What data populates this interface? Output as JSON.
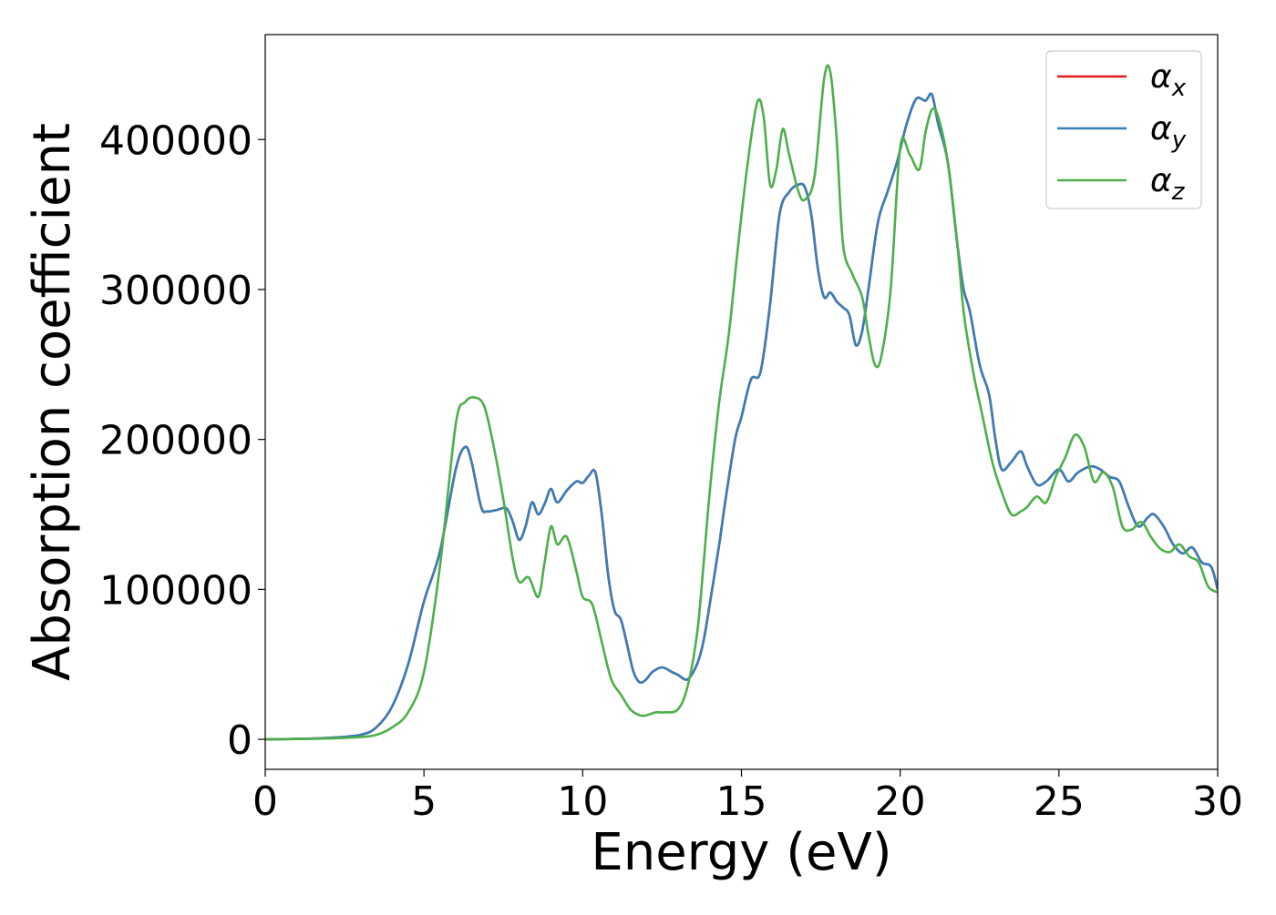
{
  "chart_data": {
    "type": "line",
    "title": "",
    "xlabel": "Energy (eV)",
    "ylabel": "Absorption coefficient",
    "xlim": [
      0,
      30
    ],
    "ylim": [
      -20000,
      470000
    ],
    "xticks": [
      0,
      5,
      10,
      15,
      20,
      25,
      30
    ],
    "yticks": [
      0,
      100000,
      200000,
      300000,
      400000
    ],
    "grid": false,
    "legend_position": "top-right",
    "series": [
      {
        "name": "α_x",
        "label_base": "α",
        "label_sub": "x",
        "color": "#e41a1c",
        "x": [
          0,
          1,
          2,
          3,
          3.5,
          4,
          4.5,
          5,
          5.5,
          6,
          6.3,
          6.5,
          6.8,
          7,
          7.3,
          7.6,
          7.8,
          8,
          8.2,
          8.4,
          8.6,
          8.8,
          9,
          9.2,
          9.5,
          9.8,
          10,
          10.2,
          10.4,
          10.6,
          10.8,
          11,
          11.2,
          11.4,
          11.6,
          11.8,
          12,
          12.2,
          12.5,
          12.8,
          13,
          13.3,
          13.6,
          13.8,
          14,
          14.3,
          14.5,
          14.8,
          15,
          15.3,
          15.6,
          15.9,
          16.2,
          16.5,
          16.8,
          17,
          17.2,
          17.4,
          17.6,
          17.8,
          18,
          18.2,
          18.4,
          18.6,
          18.8,
          19,
          19.3,
          19.6,
          19.9,
          20.2,
          20.5,
          20.8,
          21,
          21.2,
          21.5,
          21.8,
          22,
          22.2,
          22.5,
          22.8,
          23,
          23.2,
          23.5,
          23.8,
          24,
          24.3,
          24.6,
          25,
          25.3,
          25.6,
          26,
          26.3,
          26.6,
          26.9,
          27.2,
          27.5,
          27.8,
          28,
          28.3,
          28.6,
          28.9,
          29.2,
          29.5,
          29.8,
          30
        ],
        "y": [
          0,
          300,
          1000,
          3000,
          8000,
          22000,
          50000,
          92000,
          125000,
          180000,
          195000,
          185000,
          155000,
          152000,
          153000,
          154000,
          145000,
          133000,
          142000,
          158000,
          150000,
          157000,
          167000,
          158000,
          166000,
          172000,
          171000,
          176000,
          178000,
          150000,
          110000,
          86000,
          80000,
          63000,
          45000,
          38000,
          40000,
          45000,
          48000,
          45000,
          43000,
          40000,
          50000,
          65000,
          90000,
          130000,
          160000,
          200000,
          215000,
          240000,
          245000,
          290000,
          350000,
          365000,
          370000,
          368000,
          350000,
          315000,
          295000,
          298000,
          292000,
          288000,
          283000,
          263000,
          272000,
          300000,
          345000,
          365000,
          385000,
          410000,
          427000,
          426000,
          430000,
          410000,
          385000,
          330000,
          300000,
          285000,
          250000,
          230000,
          200000,
          180000,
          185000,
          192000,
          182000,
          170000,
          172000,
          180000,
          172000,
          178000,
          182000,
          180000,
          175000,
          172000,
          155000,
          142000,
          148000,
          150000,
          142000,
          130000,
          124000,
          128000,
          118000,
          115000,
          100000
        ]
      },
      {
        "name": "α_y",
        "label_base": "α",
        "label_sub": "y",
        "color": "#377eb8",
        "x": [
          0,
          1,
          2,
          3,
          3.5,
          4,
          4.5,
          5,
          5.5,
          6,
          6.3,
          6.5,
          6.8,
          7,
          7.3,
          7.6,
          7.8,
          8,
          8.2,
          8.4,
          8.6,
          8.8,
          9,
          9.2,
          9.5,
          9.8,
          10,
          10.2,
          10.4,
          10.6,
          10.8,
          11,
          11.2,
          11.4,
          11.6,
          11.8,
          12,
          12.2,
          12.5,
          12.8,
          13,
          13.3,
          13.6,
          13.8,
          14,
          14.3,
          14.5,
          14.8,
          15,
          15.3,
          15.6,
          15.9,
          16.2,
          16.5,
          16.8,
          17,
          17.2,
          17.4,
          17.6,
          17.8,
          18,
          18.2,
          18.4,
          18.6,
          18.8,
          19,
          19.3,
          19.6,
          19.9,
          20.2,
          20.5,
          20.8,
          21,
          21.2,
          21.5,
          21.8,
          22,
          22.2,
          22.5,
          22.8,
          23,
          23.2,
          23.5,
          23.8,
          24,
          24.3,
          24.6,
          25,
          25.3,
          25.6,
          26,
          26.3,
          26.6,
          26.9,
          27.2,
          27.5,
          27.8,
          28,
          28.3,
          28.6,
          28.9,
          29.2,
          29.5,
          29.8,
          30
        ],
        "y": [
          0,
          300,
          1000,
          3000,
          8000,
          22000,
          50000,
          92000,
          125000,
          180000,
          195000,
          185000,
          155000,
          152000,
          153000,
          154000,
          145000,
          133000,
          142000,
          158000,
          150000,
          157000,
          167000,
          158000,
          166000,
          172000,
          171000,
          176000,
          178000,
          150000,
          110000,
          86000,
          80000,
          63000,
          45000,
          38000,
          40000,
          45000,
          48000,
          45000,
          43000,
          40000,
          50000,
          65000,
          90000,
          130000,
          160000,
          200000,
          215000,
          240000,
          245000,
          290000,
          350000,
          365000,
          370000,
          368000,
          350000,
          315000,
          295000,
          298000,
          292000,
          288000,
          283000,
          263000,
          272000,
          300000,
          345000,
          365000,
          385000,
          410000,
          427000,
          426000,
          430000,
          410000,
          385000,
          330000,
          300000,
          285000,
          250000,
          230000,
          200000,
          180000,
          185000,
          192000,
          182000,
          170000,
          172000,
          180000,
          172000,
          178000,
          182000,
          180000,
          175000,
          172000,
          155000,
          142000,
          148000,
          150000,
          142000,
          130000,
          124000,
          128000,
          118000,
          115000,
          100000
        ]
      },
      {
        "name": "α_z",
        "label_base": "α",
        "label_sub": "z",
        "color": "#4daf4a",
        "x": [
          0,
          1,
          2,
          3,
          3.5,
          4,
          4.5,
          5,
          5.5,
          6,
          6.3,
          6.6,
          6.9,
          7.2,
          7.5,
          7.8,
          8,
          8.3,
          8.6,
          8.8,
          9,
          9.2,
          9.5,
          9.8,
          10,
          10.3,
          10.6,
          10.9,
          11.2,
          11.5,
          11.8,
          12,
          12.3,
          12.6,
          13,
          13.3,
          13.6,
          13.8,
          14,
          14.3,
          14.6,
          14.9,
          15.2,
          15.5,
          15.7,
          15.9,
          16.1,
          16.3,
          16.5,
          16.8,
          17,
          17.3,
          17.6,
          17.8,
          18,
          18.2,
          18.5,
          18.8,
          19,
          19.2,
          19.4,
          19.7,
          20,
          20.3,
          20.6,
          20.8,
          21,
          21.2,
          21.5,
          21.8,
          22,
          22.3,
          22.6,
          22.9,
          23.2,
          23.5,
          23.8,
          24,
          24.3,
          24.6,
          24.9,
          25.2,
          25.5,
          25.8,
          26.1,
          26.4,
          26.7,
          27,
          27.3,
          27.6,
          27.9,
          28.2,
          28.5,
          28.8,
          29.1,
          29.4,
          29.7,
          30
        ],
        "y": [
          0,
          200,
          600,
          1500,
          3000,
          8000,
          18000,
          45000,
          115000,
          210000,
          225000,
          228000,
          222000,
          195000,
          160000,
          120000,
          105000,
          108000,
          95000,
          118000,
          142000,
          130000,
          135000,
          112000,
          95000,
          90000,
          65000,
          40000,
          30000,
          20000,
          16000,
          16000,
          18000,
          18000,
          20000,
          35000,
          70000,
          115000,
          165000,
          225000,
          270000,
          330000,
          385000,
          425000,
          415000,
          370000,
          380000,
          407000,
          390000,
          365000,
          360000,
          375000,
          440000,
          445000,
          400000,
          330000,
          310000,
          295000,
          270000,
          250000,
          255000,
          300000,
          395000,
          390000,
          380000,
          405000,
          420000,
          415000,
          385000,
          330000,
          285000,
          245000,
          215000,
          185000,
          165000,
          150000,
          152000,
          155000,
          162000,
          158000,
          175000,
          188000,
          203000,
          195000,
          172000,
          178000,
          168000,
          142000,
          140000,
          145000,
          135000,
          127000,
          125000,
          130000,
          122000,
          118000,
          102000,
          98000
        ]
      }
    ]
  }
}
